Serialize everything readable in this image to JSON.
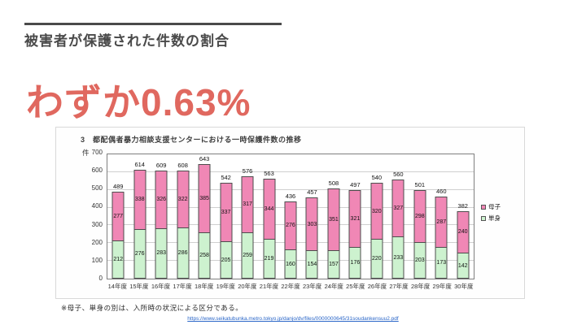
{
  "slide": {
    "title": "被害者が保護された件数の割合",
    "headline": "わずか0.63%",
    "footnote": "※母子、単身の別は、入所時の状況による区分である。",
    "source_url": "https://www.seikatubunka.metro.tokyo.jp/danjo/dv/files/0000000645/31soudankensuu2.pdf"
  },
  "colors": {
    "accent_red": "#E0685F",
    "title_gray": "#4a4a4a",
    "link_blue": "#2a66c8",
    "mother_child_pink": "#F087B5",
    "single_green": "#CDF2CF"
  },
  "chart_data": {
    "type": "bar",
    "stacked": true,
    "title": "3　都配偶者暴力相談支援センターにおける一時保護件数の推移",
    "unit_label": "件",
    "categories": [
      "14年度",
      "15年度",
      "16年度",
      "17年度",
      "18年度",
      "19年度",
      "20年度",
      "21年度",
      "22年度",
      "23年度",
      "24年度",
      "25年度",
      "26年度",
      "27年度",
      "28年度",
      "29年度",
      "30年度"
    ],
    "series": [
      {
        "name": "母子",
        "color": "#F087B5",
        "position": "top",
        "values": [
          277,
          338,
          326,
          322,
          385,
          337,
          317,
          344,
          276,
          303,
          351,
          321,
          320,
          327,
          298,
          287,
          240
        ]
      },
      {
        "name": "単身",
        "color": "#CDF2CF",
        "position": "bottom",
        "values": [
          212,
          276,
          283,
          286,
          258,
          205,
          259,
          219,
          160,
          154,
          157,
          176,
          220,
          233,
          203,
          173,
          142
        ]
      }
    ],
    "totals": [
      489,
      614,
      609,
      608,
      643,
      542,
      576,
      563,
      436,
      457,
      508,
      497,
      540,
      560,
      501,
      460,
      382
    ],
    "ylim": [
      0,
      700
    ],
    "ytick_interval": 100,
    "grid": true,
    "legend_position": "right"
  }
}
